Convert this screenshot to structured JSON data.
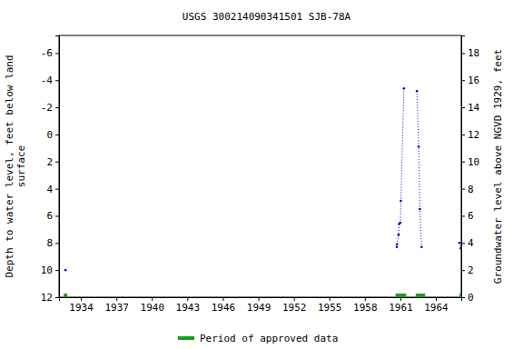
{
  "chart_data": {
    "type": "line",
    "title": "USGS 300214090341501 SJB-78A",
    "y_label": [
      "Depth to water level, feet below land",
      "surface"
    ],
    "y2_label": "Groundwater level above NGVD 1929, feet",
    "x": [
      1932.7,
      1946.0,
      1960.7,
      1960.72,
      1960.85,
      1960.9,
      1961.0,
      1961.05,
      1961.3,
      1961.9,
      1962.4,
      1962.55,
      1962.65,
      1962.8,
      1964.5,
      1966.0,
      1966.1
    ],
    "series": [
      {
        "color": "#0000cc",
        "marker": "circle",
        "line_style": "dotted",
        "values": [
          10.0,
          null,
          8.3,
          8.1,
          7.4,
          6.6,
          6.5,
          4.9,
          -3.4,
          null,
          -3.2,
          0.9,
          5.5,
          8.3,
          null,
          8.0,
          8.4
        ]
      }
    ],
    "xlim": [
      1932.15,
      1966.15
    ],
    "xticks": [
      1934,
      1937,
      1940,
      1943,
      1946,
      1949,
      1952,
      1955,
      1958,
      1961,
      1964
    ],
    "ylim": [
      12,
      -7.3
    ],
    "yticks": [
      -6,
      -4,
      -2,
      0,
      2,
      4,
      6,
      8,
      10,
      12
    ],
    "y2lim": [
      0,
      19.3
    ],
    "y2ticks": [
      0,
      2,
      4,
      6,
      8,
      10,
      12,
      14,
      16,
      18
    ],
    "grid": false,
    "approved_periods": {
      "name": "Period of approved data",
      "color": "#1a9e1a",
      "ranges": [
        [
          1932.55,
          1932.85
        ],
        [
          1960.6,
          1961.5
        ],
        [
          1962.3,
          1963.1
        ],
        [
          1966.0,
          1966.15
        ]
      ]
    }
  }
}
